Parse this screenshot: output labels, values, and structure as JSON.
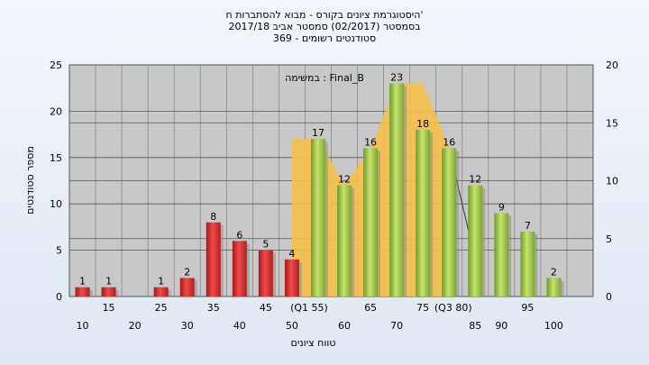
{
  "chart_data": {
    "type": "bar",
    "title_lines": [
      "היסטוגרמת ציונים בקורס - מבוא להסתברות ח'",
      "בסמסטר  (02/2017)  סמסטר אביב 2017/18",
      "סטודנטים רשומים - 369"
    ],
    "annotation": "במשימה : Final_B",
    "xlabel": "טווח ציונים",
    "ylabel": "מספר סטודנטים",
    "ylim": [
      0,
      25
    ],
    "y_ticks": [
      0,
      5,
      10,
      15,
      20,
      25
    ],
    "y2lim": [
      0,
      20
    ],
    "y2_ticks": [
      0,
      5,
      10,
      15,
      20
    ],
    "x_tick_labels_row1": [
      "15",
      "25",
      "35",
      "45",
      "(Q1 55)",
      "65",
      "75",
      "(Q3 80)",
      "95"
    ],
    "x_tick_labels_row2": [
      "10",
      "20",
      "30",
      "40",
      "50",
      "60",
      "70",
      "85",
      "90",
      "100"
    ],
    "bars": [
      {
        "x": 10,
        "value": 1,
        "color": "#d93030"
      },
      {
        "x": 15,
        "value": 1,
        "color": "#d93030"
      },
      {
        "x": 25,
        "value": 1,
        "color": "#d93030"
      },
      {
        "x": 30,
        "value": 2,
        "color": "#d93030"
      },
      {
        "x": 35,
        "value": 8,
        "color": "#d93030"
      },
      {
        "x": 40,
        "value": 6,
        "color": "#d93030"
      },
      {
        "x": 45,
        "value": 5,
        "color": "#d93030"
      },
      {
        "x": 50,
        "value": 4,
        "color": "#d93030"
      },
      {
        "x": 55,
        "value": 17,
        "color": "#8cbb3c"
      },
      {
        "x": 60,
        "value": 12,
        "color": "#8cbb3c"
      },
      {
        "x": 65,
        "value": 16,
        "color": "#8cbb3c"
      },
      {
        "x": 70,
        "value": 23,
        "color": "#8cbb3c"
      },
      {
        "x": 75,
        "value": 18,
        "color": "#8cbb3c"
      },
      {
        "x": 80,
        "value": 16,
        "color": "#8cbb3c"
      },
      {
        "x": 85,
        "value": 12,
        "color": "#8cbb3c"
      },
      {
        "x": 90,
        "value": 9,
        "color": "#8cbb3c"
      },
      {
        "x": 95,
        "value": 7,
        "color": "#8cbb3c"
      },
      {
        "x": 100,
        "value": 2,
        "color": "#8cbb3c"
      }
    ],
    "area_series": {
      "color": "#f5c04a",
      "points": [
        [
          50,
          0
        ],
        [
          50,
          17
        ],
        [
          55,
          17
        ],
        [
          60,
          12
        ],
        [
          65,
          16
        ],
        [
          70,
          23
        ],
        [
          75,
          23
        ],
        [
          80,
          16
        ],
        [
          80,
          0
        ]
      ]
    },
    "grid": true,
    "colors": {
      "plot_bg": "#c8c8c8",
      "failing": "#d93030",
      "passing": "#8cbb3c",
      "area": "#f5c04a"
    }
  }
}
